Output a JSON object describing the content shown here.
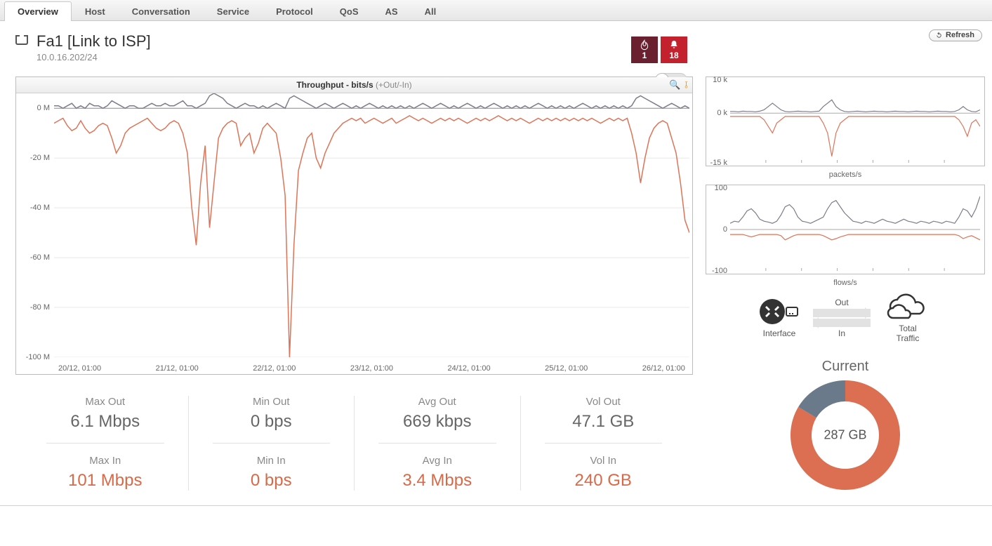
{
  "tabs": {
    "items": [
      "Overview",
      "Host",
      "Conversation",
      "Service",
      "Protocol",
      "QoS",
      "AS",
      "All"
    ],
    "active_index": 0
  },
  "refresh_label": "Refresh",
  "interface": {
    "name": "Fa1 [Link to ISP]",
    "address": "10.0.16.202/24"
  },
  "badges": {
    "fire_count": "1",
    "fire_bg_color": "#6b2030",
    "bell_count": "18",
    "bell_bg_color": "#c4212f"
  },
  "main_chart": {
    "type": "line",
    "title_prefix": "Throughput - bits/s",
    "title_suffix": "(+Out/-In)",
    "title_fontsize": 12,
    "background_color": "#ffffff",
    "grid_color": "#e8e8e8",
    "out_line_color": "#7d7d8a",
    "in_line_color": "#dd7457",
    "line_width": 1.5,
    "ylim": [
      -100,
      6
    ],
    "ytick_labels": [
      "0 M",
      "-20 M",
      "-40 M",
      "-60 M",
      "-80 M",
      "-100 M"
    ],
    "ytick_values": [
      0,
      -20,
      -40,
      -60,
      -80,
      -100
    ],
    "x_labels": [
      "20/12, 01:00",
      "21/12, 01:00",
      "22/12, 01:00",
      "23/12, 01:00",
      "24/12, 01:00",
      "25/12, 01:00",
      "26/12, 01:00"
    ],
    "out_series": [
      1,
      1,
      0,
      1,
      2,
      0,
      1,
      0,
      2,
      1,
      1,
      0,
      1,
      3,
      2,
      1,
      0,
      1,
      1,
      0,
      0,
      1,
      2,
      1,
      1,
      2,
      1,
      1,
      2,
      3,
      1,
      1,
      0,
      1,
      2,
      5,
      6,
      5,
      4,
      2,
      1,
      0,
      1,
      2,
      1,
      1,
      0,
      1,
      0,
      1,
      2,
      1,
      0,
      4,
      5,
      4,
      3,
      2,
      1,
      0,
      1,
      2,
      1,
      0,
      1,
      2,
      1,
      0,
      1,
      0,
      1,
      2,
      1,
      0,
      1,
      0,
      1,
      0,
      1,
      0,
      1,
      0,
      1,
      2,
      1,
      0,
      1,
      2,
      1,
      0,
      1,
      0,
      1,
      2,
      1,
      0,
      1,
      0,
      1,
      2,
      1,
      0,
      1,
      0,
      1,
      0,
      1,
      0,
      1,
      2,
      1,
      0,
      1,
      0,
      1,
      0,
      1,
      0,
      1,
      2,
      1,
      0,
      1,
      0,
      1,
      0,
      1,
      0,
      1,
      0,
      1,
      4,
      5,
      4,
      3,
      2,
      1,
      0,
      1,
      2,
      1,
      0,
      1,
      0
    ],
    "in_series": [
      -6,
      -5,
      -4,
      -7,
      -9,
      -8,
      -5,
      -8,
      -10,
      -9,
      -7,
      -6,
      -7,
      -12,
      -18,
      -15,
      -10,
      -8,
      -7,
      -6,
      -5,
      -4,
      -6,
      -8,
      -9,
      -8,
      -6,
      -5,
      -6,
      -10,
      -18,
      -40,
      -55,
      -30,
      -15,
      -48,
      -30,
      -12,
      -8,
      -6,
      -5,
      -6,
      -15,
      -12,
      -10,
      -18,
      -14,
      -8,
      -6,
      -8,
      -10,
      -20,
      -35,
      -100,
      -55,
      -25,
      -18,
      -12,
      -10,
      -20,
      -24,
      -18,
      -14,
      -10,
      -8,
      -6,
      -5,
      -4,
      -5,
      -4,
      -6,
      -5,
      -4,
      -5,
      -6,
      -5,
      -4,
      -6,
      -5,
      -4,
      -3,
      -4,
      -5,
      -4,
      -5,
      -6,
      -5,
      -4,
      -5,
      -4,
      -5,
      -4,
      -5,
      -6,
      -5,
      -4,
      -5,
      -4,
      -5,
      -4,
      -3,
      -4,
      -5,
      -4,
      -5,
      -4,
      -5,
      -6,
      -5,
      -4,
      -5,
      -4,
      -5,
      -4,
      -5,
      -4,
      -5,
      -4,
      -5,
      -4,
      -5,
      -4,
      -5,
      -6,
      -5,
      -4,
      -5,
      -4,
      -5,
      -4,
      -10,
      -18,
      -30,
      -20,
      -12,
      -8,
      -6,
      -5,
      -6,
      -12,
      -18,
      -30,
      -45,
      -50
    ]
  },
  "mini_chart_packets": {
    "type": "line",
    "caption": "packets/s",
    "out_line_color": "#7d7d8a",
    "in_line_color": "#dd7457",
    "ylim": [
      -15,
      10
    ],
    "ytick_labels": [
      "10 k",
      "0 k",
      "-15 k"
    ],
    "ytick_values": [
      10,
      0,
      -15
    ],
    "out_series": [
      0.5,
      0.5,
      0.4,
      0.6,
      0.5,
      0.5,
      0.4,
      0.6,
      1,
      2,
      3,
      2,
      1,
      0.5,
      0.4,
      0.5,
      0.6,
      0.5,
      0.5,
      0.4,
      0.5,
      0.6,
      2,
      3,
      4,
      2,
      1,
      0.5,
      0.4,
      0.5,
      0.6,
      0.5,
      0.4,
      0.5,
      0.6,
      0.5,
      0.5,
      0.4,
      0.5,
      0.6,
      0.5,
      0.5,
      0.4,
      0.5,
      0.6,
      0.5,
      0.5,
      0.4,
      0.5,
      0.6,
      0.5,
      0.5,
      0.4,
      0.5,
      1,
      2,
      1,
      0.5,
      0.4,
      1
    ],
    "in_series": [
      -1,
      -1,
      -1,
      -1,
      -1,
      -1,
      -1,
      -1,
      -2,
      -4,
      -6,
      -3,
      -2,
      -1,
      -1,
      -1,
      -1,
      -1,
      -1,
      -1,
      -1,
      -1,
      -3,
      -6,
      -13,
      -6,
      -3,
      -2,
      -1,
      -1,
      -1,
      -1,
      -1,
      -1,
      -1,
      -1,
      -1,
      -1,
      -1,
      -1,
      -1,
      -1,
      -1,
      -1,
      -1,
      -1,
      -1,
      -1,
      -1,
      -1,
      -1,
      -1,
      -1,
      -1,
      -2,
      -4,
      -7,
      -3,
      -2,
      -4
    ]
  },
  "mini_chart_flows": {
    "type": "line",
    "caption": "flows/s",
    "out_line_color": "#7d7d8a",
    "in_line_color": "#dd7457",
    "ylim": [
      -100,
      100
    ],
    "ytick_labels": [
      "100",
      "0",
      "-100"
    ],
    "ytick_values": [
      100,
      0,
      -100
    ],
    "out_series": [
      15,
      20,
      18,
      30,
      45,
      50,
      40,
      25,
      20,
      18,
      15,
      20,
      35,
      55,
      60,
      50,
      30,
      20,
      18,
      15,
      20,
      25,
      30,
      50,
      65,
      70,
      55,
      40,
      30,
      20,
      18,
      15,
      20,
      18,
      15,
      20,
      25,
      20,
      18,
      15,
      20,
      25,
      20,
      18,
      15,
      20,
      18,
      15,
      20,
      18,
      15,
      20,
      18,
      15,
      30,
      50,
      45,
      30,
      50,
      80
    ],
    "in_series": [
      -12,
      -12,
      -12,
      -12,
      -15,
      -18,
      -15,
      -12,
      -12,
      -12,
      -12,
      -12,
      -15,
      -25,
      -20,
      -15,
      -12,
      -12,
      -12,
      -12,
      -12,
      -12,
      -15,
      -20,
      -25,
      -22,
      -18,
      -15,
      -12,
      -12,
      -12,
      -12,
      -12,
      -12,
      -12,
      -12,
      -12,
      -12,
      -12,
      -12,
      -12,
      -12,
      -12,
      -12,
      -12,
      -12,
      -12,
      -12,
      -12,
      -12,
      -12,
      -12,
      -12,
      -12,
      -15,
      -22,
      -18,
      -15,
      -20,
      -25
    ]
  },
  "flow_diagram": {
    "left_label": "Interface",
    "right_label_line1": "Total",
    "right_label_line2": "Traffic",
    "out_label": "Out",
    "in_label": "In"
  },
  "stats": {
    "columns": [
      {
        "out_label": "Max Out",
        "out_value": "6.1 Mbps",
        "in_label": "Max In",
        "in_value": "101 Mbps"
      },
      {
        "out_label": "Min Out",
        "out_value": "0 bps",
        "in_label": "Min In",
        "in_value": "0 bps"
      },
      {
        "out_label": "Avg Out",
        "out_value": "669 kbps",
        "in_label": "Avg In",
        "in_value": "3.4 Mbps"
      },
      {
        "out_label": "Vol Out",
        "out_value": "47.1 GB",
        "in_label": "Vol In",
        "in_value": "240 GB"
      }
    ],
    "out_color": "#666666",
    "in_color": "#d66a49"
  },
  "donut": {
    "title": "Current",
    "center_label": "287 GB",
    "segments": [
      {
        "color": "#dc6e51",
        "fraction": 0.836
      },
      {
        "color": "#6a7a8a",
        "fraction": 0.164
      }
    ],
    "inner_radius": 48,
    "outer_radius": 78
  }
}
